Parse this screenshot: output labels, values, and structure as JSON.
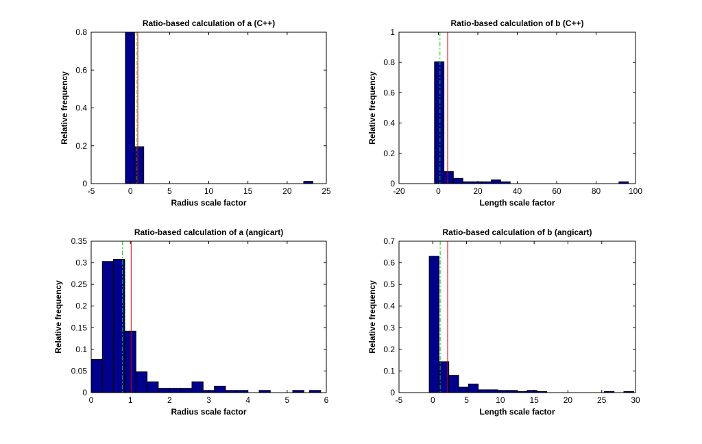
{
  "chart_data": [
    {
      "type": "bar",
      "title": "Ratio-based calculation of a (C++)",
      "xlabel": "Radius scale factor",
      "ylabel": "Relative frequency",
      "xlim": [
        -5,
        25
      ],
      "ylim": [
        0,
        0.8
      ],
      "xticks": [
        "-5",
        "0",
        "5",
        "10",
        "15",
        "20",
        "25"
      ],
      "yticks": [
        "0",
        "0.2",
        "0.4",
        "0.6",
        "0.8"
      ],
      "bin_width": 1.17,
      "bins": [
        {
          "x": -0.05,
          "value": 0.8
        },
        {
          "x": 1.12,
          "value": 0.195
        },
        {
          "x": 22.7,
          "value": 0.012
        }
      ],
      "vlines": [
        {
          "x": 0.75,
          "style": "dashdot",
          "color": "#00cc00"
        },
        {
          "x": 0.95,
          "style": "solid",
          "color": "#cc0000"
        }
      ],
      "bar_color": "#00008b"
    },
    {
      "type": "bar",
      "title": "Ratio-based calculation of b (C++)",
      "xlabel": "Length scale factor",
      "ylabel": "Relative frequency",
      "xlim": [
        -20,
        100
      ],
      "ylim": [
        0,
        1
      ],
      "xticks": [
        "-20",
        "0",
        "20",
        "40",
        "60",
        "80",
        "100"
      ],
      "yticks": [
        "0",
        "0.2",
        "0.4",
        "0.6",
        "0.8",
        "1"
      ],
      "bin_width": 4.8,
      "bins": [
        {
          "x": 0.4,
          "value": 0.805
        },
        {
          "x": 5.2,
          "value": 0.08
        },
        {
          "x": 10.0,
          "value": 0.035
        },
        {
          "x": 14.8,
          "value": 0.012
        },
        {
          "x": 19.6,
          "value": 0.012
        },
        {
          "x": 24.4,
          "value": 0.012
        },
        {
          "x": 29.2,
          "value": 0.025
        },
        {
          "x": 34.0,
          "value": 0.012
        },
        {
          "x": 94.0,
          "value": 0.012
        }
      ],
      "vlines": [
        {
          "x": 0.8,
          "style": "dashdot",
          "color": "#00cc00"
        },
        {
          "x": 4.7,
          "style": "solid",
          "color": "#cc0000"
        }
      ],
      "bar_color": "#00008b"
    },
    {
      "type": "bar",
      "title": "Ratio-based calculation of a (angicart)",
      "xlabel": "Radius scale factor",
      "ylabel": "Relative frequency",
      "xlim": [
        0,
        6
      ],
      "ylim": [
        0,
        0.35
      ],
      "xticks": [
        "0",
        "1",
        "2",
        "3",
        "4",
        "5",
        "6"
      ],
      "yticks": [
        "0",
        "0.05",
        "0.1",
        "0.15",
        "0.2",
        "0.25",
        "0.3",
        "0.35"
      ],
      "bin_width": 0.286,
      "bins": [
        {
          "x": 0.143,
          "value": 0.077
        },
        {
          "x": 0.429,
          "value": 0.303
        },
        {
          "x": 0.714,
          "value": 0.308
        },
        {
          "x": 1.0,
          "value": 0.142
        },
        {
          "x": 1.286,
          "value": 0.048
        },
        {
          "x": 1.571,
          "value": 0.025
        },
        {
          "x": 1.857,
          "value": 0.01
        },
        {
          "x": 2.143,
          "value": 0.01
        },
        {
          "x": 2.429,
          "value": 0.01
        },
        {
          "x": 2.714,
          "value": 0.025
        },
        {
          "x": 3.0,
          "value": 0.005
        },
        {
          "x": 3.286,
          "value": 0.015
        },
        {
          "x": 3.571,
          "value": 0.005
        },
        {
          "x": 3.857,
          "value": 0.005
        },
        {
          "x": 4.429,
          "value": 0.005
        },
        {
          "x": 5.286,
          "value": 0.005
        },
        {
          "x": 5.714,
          "value": 0.005
        }
      ],
      "vlines": [
        {
          "x": 0.8,
          "style": "dashdot",
          "color": "#00cc00"
        },
        {
          "x": 1.02,
          "style": "solid",
          "color": "#cc0000"
        }
      ],
      "bar_color": "#00008b"
    },
    {
      "type": "bar",
      "title": "Ratio-based calculation of b (angicart)",
      "xlabel": "Length scale factor",
      "ylabel": "Relative frequency",
      "xlim": [
        -5,
        30
      ],
      "ylim": [
        0,
        0.7
      ],
      "xticks": [
        "-5",
        "0",
        "5",
        "10",
        "15",
        "20",
        "25",
        "30"
      ],
      "yticks": [
        "0",
        "0.1",
        "0.2",
        "0.3",
        "0.4",
        "0.5",
        "0.6",
        "0.7"
      ],
      "bin_width": 1.45,
      "bins": [
        {
          "x": 0.2,
          "value": 0.63
        },
        {
          "x": 1.65,
          "value": 0.143
        },
        {
          "x": 3.1,
          "value": 0.08
        },
        {
          "x": 4.55,
          "value": 0.025
        },
        {
          "x": 6.0,
          "value": 0.04
        },
        {
          "x": 7.45,
          "value": 0.013
        },
        {
          "x": 8.9,
          "value": 0.013
        },
        {
          "x": 10.35,
          "value": 0.01
        },
        {
          "x": 11.8,
          "value": 0.01
        },
        {
          "x": 13.25,
          "value": 0.005
        },
        {
          "x": 14.7,
          "value": 0.01
        },
        {
          "x": 16.15,
          "value": 0.005
        },
        {
          "x": 26.1,
          "value": 0.005
        },
        {
          "x": 29.0,
          "value": 0.005
        }
      ],
      "vlines": [
        {
          "x": 1.1,
          "style": "dashdot",
          "color": "#00cc00"
        },
        {
          "x": 2.2,
          "style": "solid",
          "color": "#cc0000"
        }
      ],
      "bar_color": "#00008b"
    }
  ]
}
